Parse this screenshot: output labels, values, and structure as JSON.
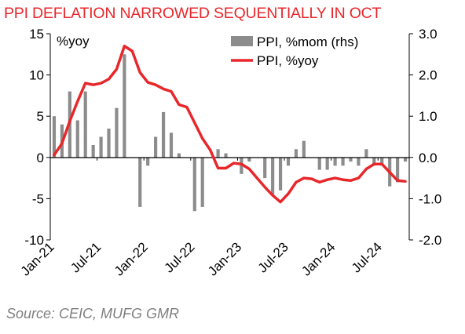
{
  "chart_data": {
    "type": "bar+line",
    "title": "PPI DEFLATION NARROWED SEQUENTIALLY IN OCT",
    "source": "Source: CEIC, MUFG GMR",
    "left_axis": {
      "unit_label": "%yoy",
      "range": [
        -10,
        15
      ],
      "ticks": [
        "15",
        "10",
        "5",
        "0",
        "-5",
        "-10"
      ]
    },
    "right_axis": {
      "range": [
        -2.0,
        3.0
      ],
      "ticks": [
        "3.0",
        "2.0",
        "1.0",
        "0.0",
        "-1.0",
        "-2.0"
      ]
    },
    "x_ticks": [
      "Jan-21",
      "Jul-21",
      "Jan-22",
      "Jul-22",
      "Jan-23",
      "Jul-23",
      "Jan-24",
      "Jul-24"
    ],
    "months": [
      "2021-01",
      "2021-02",
      "2021-03",
      "2021-04",
      "2021-05",
      "2021-06",
      "2021-07",
      "2021-08",
      "2021-09",
      "2021-10",
      "2021-11",
      "2021-12",
      "2022-01",
      "2022-02",
      "2022-03",
      "2022-04",
      "2022-05",
      "2022-06",
      "2022-07",
      "2022-08",
      "2022-09",
      "2022-10",
      "2022-11",
      "2022-12",
      "2023-01",
      "2023-02",
      "2023-03",
      "2023-04",
      "2023-05",
      "2023-06",
      "2023-07",
      "2023-08",
      "2023-09",
      "2023-10",
      "2023-11",
      "2023-12",
      "2024-01",
      "2024-02",
      "2024-03",
      "2024-04",
      "2024-05",
      "2024-06",
      "2024-07",
      "2024-08",
      "2024-09",
      "2024-10"
    ],
    "series": [
      {
        "name": "PPI, %mom (rhs)",
        "type": "bar",
        "axis": "right",
        "color": "#8c8c8c",
        "values": [
          1.0,
          0.8,
          1.6,
          0.9,
          1.6,
          0.3,
          0.5,
          0.7,
          1.2,
          2.5,
          0.0,
          -1.2,
          -0.2,
          0.5,
          1.1,
          0.6,
          0.1,
          0.0,
          -1.3,
          -1.2,
          0.0,
          0.2,
          0.1,
          0.0,
          -0.4,
          -0.1,
          0.0,
          -0.5,
          -0.9,
          -0.8,
          -0.2,
          0.2,
          0.4,
          0.0,
          -0.3,
          -0.3,
          -0.2,
          -0.2,
          -0.1,
          -0.2,
          0.2,
          -0.2,
          -0.2,
          -0.7,
          -0.6,
          -0.1
        ]
      },
      {
        "name": "PPI, %yoy",
        "type": "line",
        "axis": "left",
        "color": "#e8272b",
        "values": [
          0.3,
          1.7,
          4.4,
          6.8,
          9.0,
          8.8,
          9.0,
          9.5,
          10.7,
          13.5,
          12.9,
          10.3,
          9.1,
          8.8,
          8.3,
          8.0,
          6.4,
          6.1,
          4.2,
          2.3,
          0.9,
          -1.3,
          -1.3,
          -0.7,
          -0.8,
          -1.4,
          -2.5,
          -3.6,
          -4.6,
          -5.4,
          -4.4,
          -3.0,
          -2.5,
          -2.6,
          -3.0,
          -2.7,
          -2.5,
          -2.7,
          -2.8,
          -2.5,
          -1.4,
          -0.8,
          -0.8,
          -1.8,
          -2.8,
          -2.9
        ]
      }
    ],
    "legend_position": "top-right",
    "grid": false
  }
}
